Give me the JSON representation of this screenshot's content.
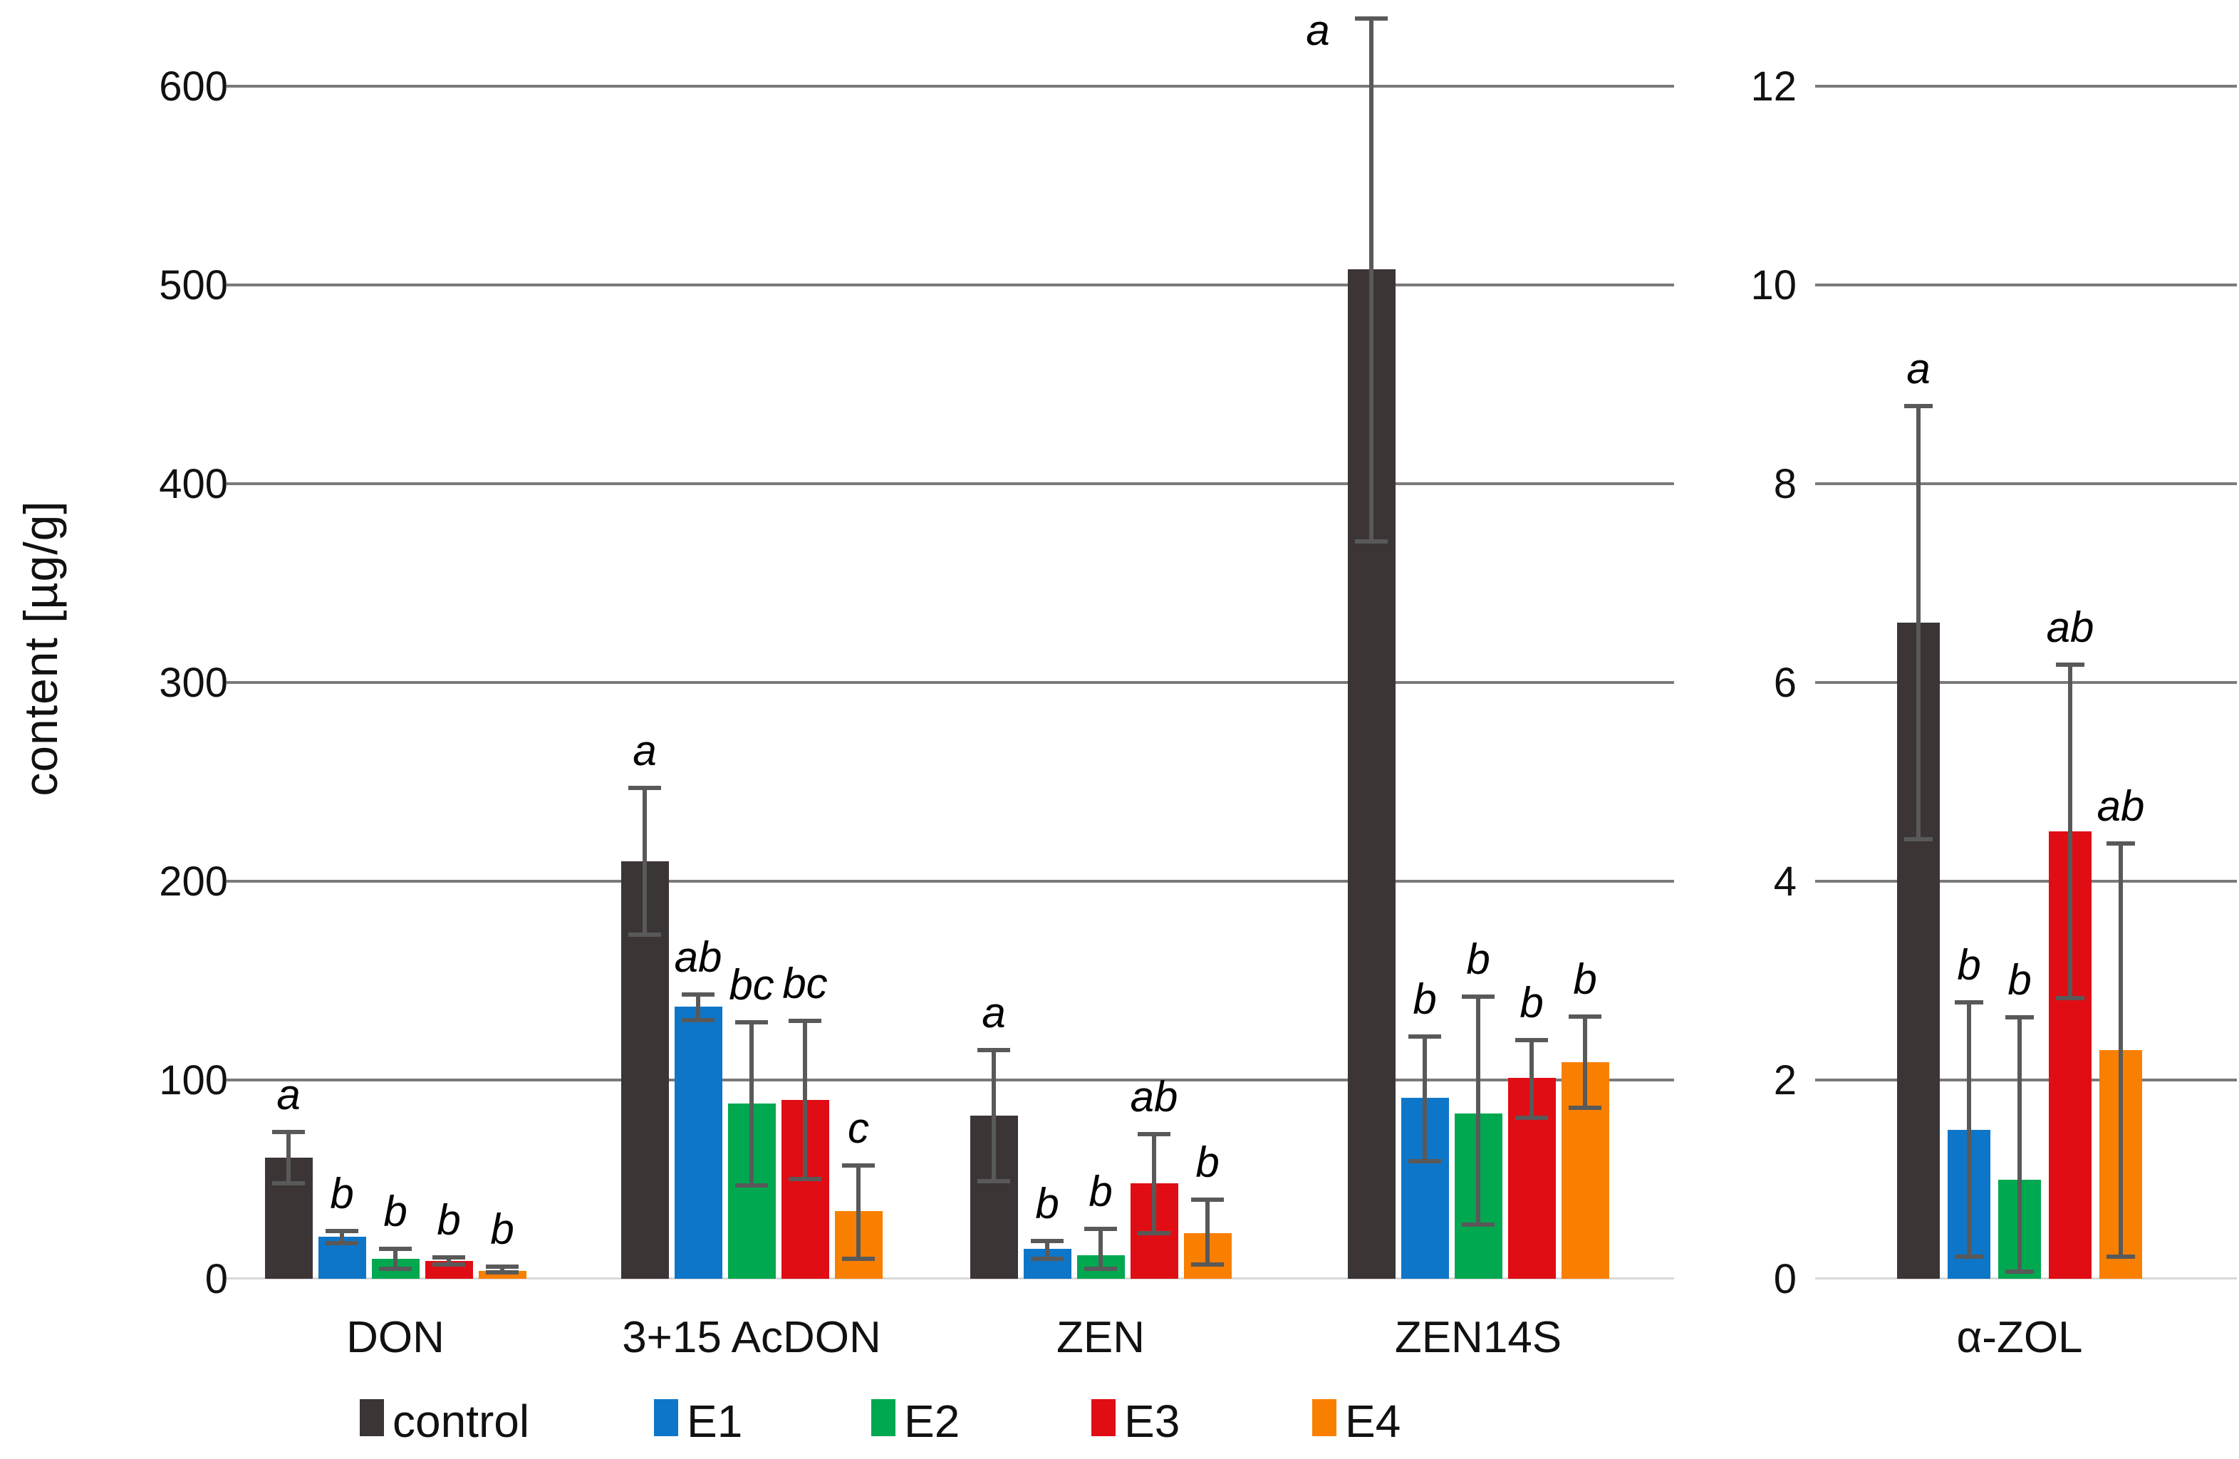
{
  "figure": {
    "y_axis_title": "content [µg/g]",
    "series_colors": {
      "control": "#3b3536",
      "E1": "#0e76c8",
      "E2": "#00a850",
      "E3": "#e00d15",
      "E4": "#f97f00"
    },
    "grid_color": "#7a7a7a",
    "zero_line_color": "#d9d9d9",
    "error_bar_color": "#595959",
    "legend": [
      {
        "label": "control",
        "series": "control"
      },
      {
        "label": "E1",
        "series": "E1"
      },
      {
        "label": "E2",
        "series": "E2"
      },
      {
        "label": "E3",
        "series": "E3"
      },
      {
        "label": "E4",
        "series": "E4"
      }
    ]
  },
  "chart_data": [
    {
      "type": "bar",
      "panel": "left",
      "ylabel": "content [µg/g]",
      "ylim": [
        0,
        645
      ],
      "yticks": [
        0,
        100,
        200,
        300,
        400,
        500,
        600
      ],
      "grid": true,
      "legend_position": "bottom",
      "series_names": [
        "control",
        "E1",
        "E2",
        "E3",
        "E4"
      ],
      "categories": [
        "DON",
        "3+15 AcDON",
        "ZEN",
        "ZEN14S"
      ],
      "groups": [
        {
          "category": "DON",
          "bars": [
            {
              "series": "control",
              "value": 61,
              "err_low": 47,
              "err_high": 75,
              "letter": "a"
            },
            {
              "series": "E1",
              "value": 21,
              "err_low": 17,
              "err_high": 25,
              "letter": "b"
            },
            {
              "series": "E2",
              "value": 10,
              "err_low": 4,
              "err_high": 16,
              "letter": "b"
            },
            {
              "series": "E3",
              "value": 9,
              "err_low": 6,
              "err_high": 12,
              "letter": "b"
            },
            {
              "series": "E4",
              "value": 4,
              "err_low": 2,
              "err_high": 7,
              "letter": "b"
            }
          ]
        },
        {
          "category": "3+15 AcDON",
          "bars": [
            {
              "series": "control",
              "value": 210,
              "err_low": 172,
              "err_high": 248,
              "letter": "a"
            },
            {
              "series": "E1",
              "value": 137,
              "err_low": 129,
              "err_high": 144,
              "letter": "ab"
            },
            {
              "series": "E2",
              "value": 88,
              "err_low": 46,
              "err_high": 130,
              "letter": "bc"
            },
            {
              "series": "E3",
              "value": 90,
              "err_low": 49,
              "err_high": 131,
              "letter": "bc"
            },
            {
              "series": "E4",
              "value": 34,
              "err_low": 9,
              "err_high": 58,
              "letter": "c"
            }
          ]
        },
        {
          "category": "ZEN",
          "bars": [
            {
              "series": "control",
              "value": 82,
              "err_low": 48,
              "err_high": 116,
              "letter": "a"
            },
            {
              "series": "E1",
              "value": 15,
              "err_low": 9,
              "err_high": 20,
              "letter": "b"
            },
            {
              "series": "E2",
              "value": 12,
              "err_low": 4,
              "err_high": 26,
              "letter": "b"
            },
            {
              "series": "E3",
              "value": 48,
              "err_low": 22,
              "err_high": 74,
              "letter": "ab"
            },
            {
              "series": "E4",
              "value": 23,
              "err_low": 6,
              "err_high": 41,
              "letter": "b"
            }
          ]
        },
        {
          "category": "ZEN14S",
          "bars": [
            {
              "series": "control",
              "value": 508,
              "err_low": 370,
              "err_high": 635,
              "letter": "a",
              "letter_dx": -75
            },
            {
              "series": "E1",
              "value": 91,
              "err_low": 58,
              "err_high": 123,
              "letter": "b"
            },
            {
              "series": "E2",
              "value": 83,
              "err_low": 26,
              "err_high": 143,
              "letter": "b"
            },
            {
              "series": "E3",
              "value": 101,
              "err_low": 80,
              "err_high": 121,
              "letter": "b"
            },
            {
              "series": "E4",
              "value": 109,
              "err_low": 85,
              "err_high": 133,
              "letter": "b"
            }
          ]
        }
      ]
    },
    {
      "type": "bar",
      "panel": "right",
      "ylabel": "",
      "ylim": [
        0,
        12.9
      ],
      "yticks": [
        0,
        2,
        4,
        6,
        8,
        10,
        12
      ],
      "grid": true,
      "series_names": [
        "control",
        "E1",
        "E2",
        "E3",
        "E4"
      ],
      "categories": [
        "α-ZOL"
      ],
      "groups": [
        {
          "category": "α-ZOL",
          "bars": [
            {
              "series": "control",
              "value": 6.6,
              "err_low": 4.4,
              "err_high": 8.8,
              "letter": "a"
            },
            {
              "series": "E1",
              "value": 1.5,
              "err_low": 0.2,
              "err_high": 2.8,
              "letter": "b"
            },
            {
              "series": "E2",
              "value": 1.0,
              "err_low": 0.05,
              "err_high": 2.65,
              "letter": "b"
            },
            {
              "series": "E3",
              "value": 4.5,
              "err_low": 2.8,
              "err_high": 6.2,
              "letter": "ab"
            },
            {
              "series": "E4",
              "value": 2.3,
              "err_low": 0.2,
              "err_high": 4.4,
              "letter": "ab"
            }
          ]
        }
      ]
    }
  ]
}
